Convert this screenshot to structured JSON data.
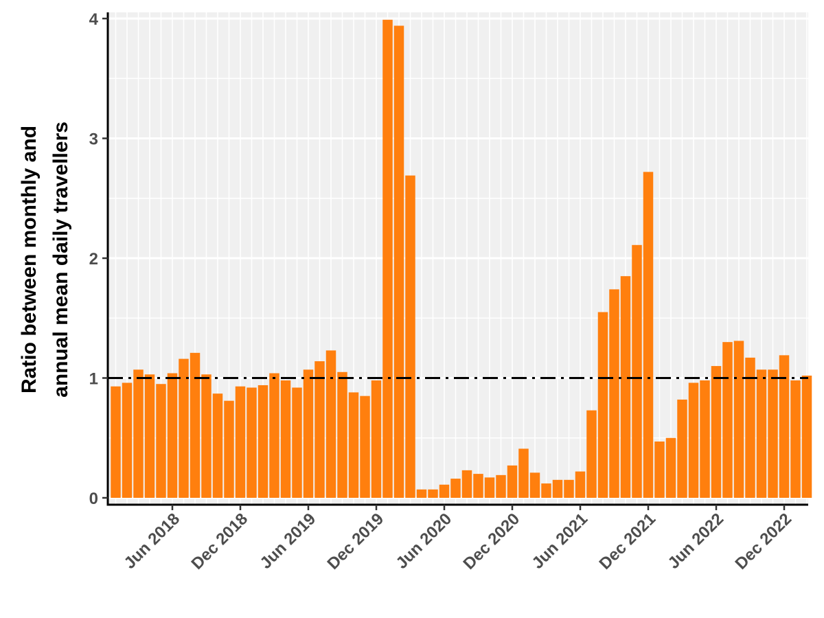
{
  "chart_data": {
    "type": "bar",
    "title": "",
    "xlabel": "",
    "ylabel_lines": [
      "Ratio between monthly and",
      "annual mean daily travellers"
    ],
    "x_start_month": "2018-01",
    "values": [
      0.93,
      0.96,
      1.07,
      1.03,
      0.95,
      1.04,
      1.16,
      1.21,
      1.03,
      0.87,
      0.81,
      0.93,
      0.92,
      0.94,
      1.04,
      0.98,
      0.92,
      1.07,
      1.14,
      1.23,
      1.05,
      0.88,
      0.85,
      0.98,
      3.99,
      3.94,
      2.69,
      0.07,
      0.07,
      0.11,
      0.16,
      0.23,
      0.2,
      0.17,
      0.19,
      0.27,
      0.41,
      0.21,
      0.12,
      0.15,
      0.15,
      0.22,
      0.73,
      1.55,
      1.74,
      1.85,
      2.11,
      2.72,
      0.47,
      0.5,
      0.82,
      0.96,
      0.98,
      1.1,
      1.3,
      1.31,
      1.17,
      1.07,
      1.07,
      1.19,
      0.98,
      1.02
    ],
    "x_ticks": [
      {
        "label": "Jun 2018",
        "month_index": 5
      },
      {
        "label": "Dec 2018",
        "month_index": 11
      },
      {
        "label": "Jun 2019",
        "month_index": 17
      },
      {
        "label": "Dec 2019",
        "month_index": 23
      },
      {
        "label": "Jun 2020",
        "month_index": 29
      },
      {
        "label": "Dec 2020",
        "month_index": 35
      },
      {
        "label": "Jun 2021",
        "month_index": 41
      },
      {
        "label": "Dec 2021",
        "month_index": 47
      },
      {
        "label": "Jun 2022",
        "month_index": 53
      },
      {
        "label": "Dec 2022",
        "month_index": 59
      }
    ],
    "y_ticks": [
      {
        "label": "0",
        "value": 0
      },
      {
        "label": "1",
        "value": 1
      },
      {
        "label": "2",
        "value": 2
      },
      {
        "label": "3",
        "value": 3
      },
      {
        "label": "4",
        "value": 4
      }
    ],
    "ylim": [
      0,
      4.05
    ],
    "reference_line": {
      "value": 1,
      "style": "dashdot",
      "color": "#000000"
    },
    "bar_color": "#ff7f0e",
    "panel_background": "#f0f0f0",
    "grid": true,
    "legend": "none"
  }
}
